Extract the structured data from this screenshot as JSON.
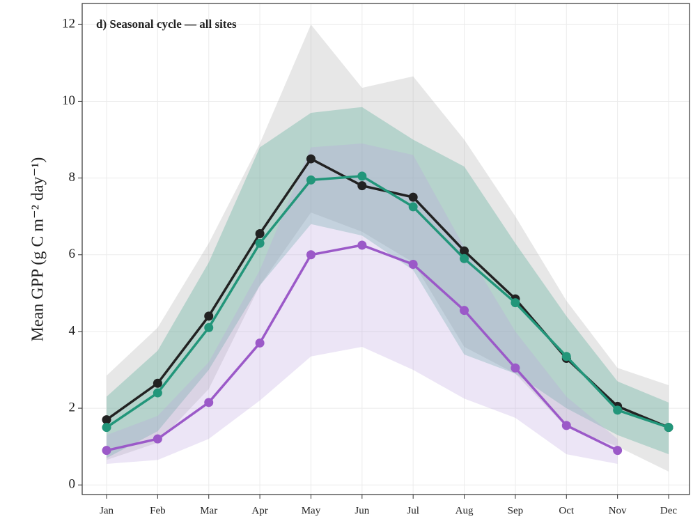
{
  "chart_data": {
    "type": "line",
    "title": "d) Seasonal cycle — all sites",
    "y_label": "Mean GPP (g C m⁻² day⁻¹)",
    "categories": [
      "Jan",
      "Feb",
      "Mar",
      "Apr",
      "May",
      "Jun",
      "Jul",
      "Aug",
      "Sep",
      "Oct",
      "Nov",
      "Dec"
    ],
    "series": [
      {
        "color": "#222222",
        "band_color": "#a8a8a8",
        "values": [
          1.7,
          2.65,
          4.4,
          6.55,
          8.5,
          7.8,
          7.5,
          6.1,
          4.85,
          3.3,
          2.05,
          1.5
        ],
        "upper": [
          2.85,
          4.1,
          6.3,
          8.9,
          12.0,
          10.35,
          10.65,
          9.0,
          7.0,
          4.8,
          3.05,
          2.6
        ],
        "lower": [
          0.65,
          1.1,
          2.5,
          5.2,
          7.1,
          6.6,
          5.8,
          3.6,
          2.9,
          1.5,
          1.0,
          0.35
        ]
      },
      {
        "color": "#22967a",
        "band_color": "#3aa38a",
        "values": [
          1.5,
          2.4,
          4.1,
          6.3,
          7.95,
          8.05,
          7.25,
          5.9,
          4.75,
          3.35,
          1.95,
          1.5
        ],
        "upper": [
          2.3,
          3.5,
          5.8,
          8.8,
          9.7,
          9.85,
          9.0,
          8.3,
          6.3,
          4.4,
          2.7,
          2.15
        ],
        "lower": [
          0.7,
          1.4,
          3.0,
          5.2,
          6.8,
          6.5,
          5.6,
          3.4,
          2.9,
          2.0,
          1.3,
          0.8
        ]
      },
      {
        "color": "#9b59c8",
        "band_color": "#b9a3e0",
        "values": [
          0.9,
          1.2,
          2.15,
          3.7,
          6.0,
          6.25,
          5.75,
          4.55,
          3.05,
          1.55,
          0.9,
          null
        ],
        "upper": [
          1.3,
          1.8,
          3.2,
          5.6,
          8.8,
          8.9,
          8.6,
          6.2,
          4.0,
          2.3,
          1.2,
          null
        ],
        "lower": [
          0.55,
          0.65,
          1.2,
          2.2,
          3.35,
          3.6,
          3.0,
          2.25,
          1.75,
          0.8,
          0.55,
          null
        ]
      }
    ],
    "ylim": [
      -0.25,
      12.55
    ],
    "yticks": [
      0,
      2,
      4,
      6,
      8,
      10,
      12
    ],
    "grid": true
  }
}
